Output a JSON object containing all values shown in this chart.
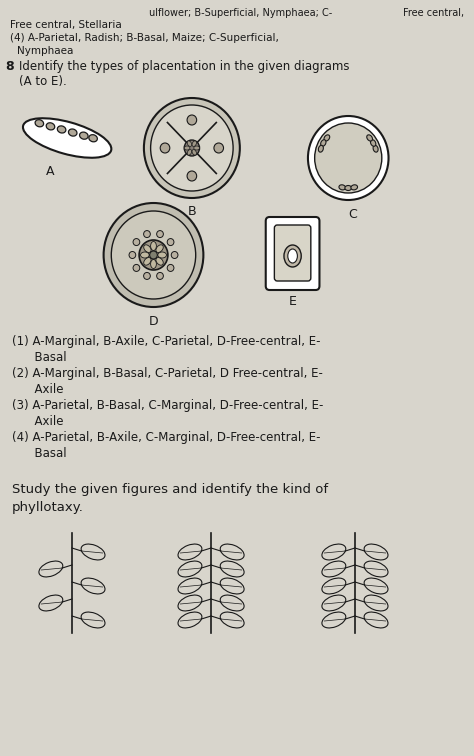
{
  "bg_color": "#d8d5cc",
  "text_color": "#1a1a1a",
  "line_color": "#1a1a1a",
  "top_text_1a": "ulflower; B-Superficial, Nymphaea; C-",
  "top_text_1b": "Free central,",
  "top_text_2": "Free central, Stellaria",
  "top_text_3": "(4) A-Parietal, Radish; B-Basal, Maize; C-Superficial,",
  "top_text_4": "Nymphaea",
  "q_num": "8",
  "q_line1": "Identify the types of placentation in the given diagrams",
  "q_line2": "(A to E).",
  "opt1a": "(1) A-Marginal, B-Axile, C-Parietal, D-Free-central, E-",
  "opt1b": "      Basal",
  "opt2a": "(2) A-Marginal, B-Basal, C-Parietal, D Free-central, E-",
  "opt2b": "      Axile",
  "opt3a": "(3) A-Parietal, B-Basal, C-Marginal, D-Free-central, E-",
  "opt3b": "      Axile",
  "opt4a": "(4) A-Parietal, B-Axile, C-Marginal, D-Free-central, E-",
  "opt4b": "      Basal",
  "bot1": "Study the given figures and identify the kind of",
  "bot2": "phyllotaxy.",
  "diagram_fg": "#c8c5b8",
  "diagram_inner": "#d5d2c5"
}
